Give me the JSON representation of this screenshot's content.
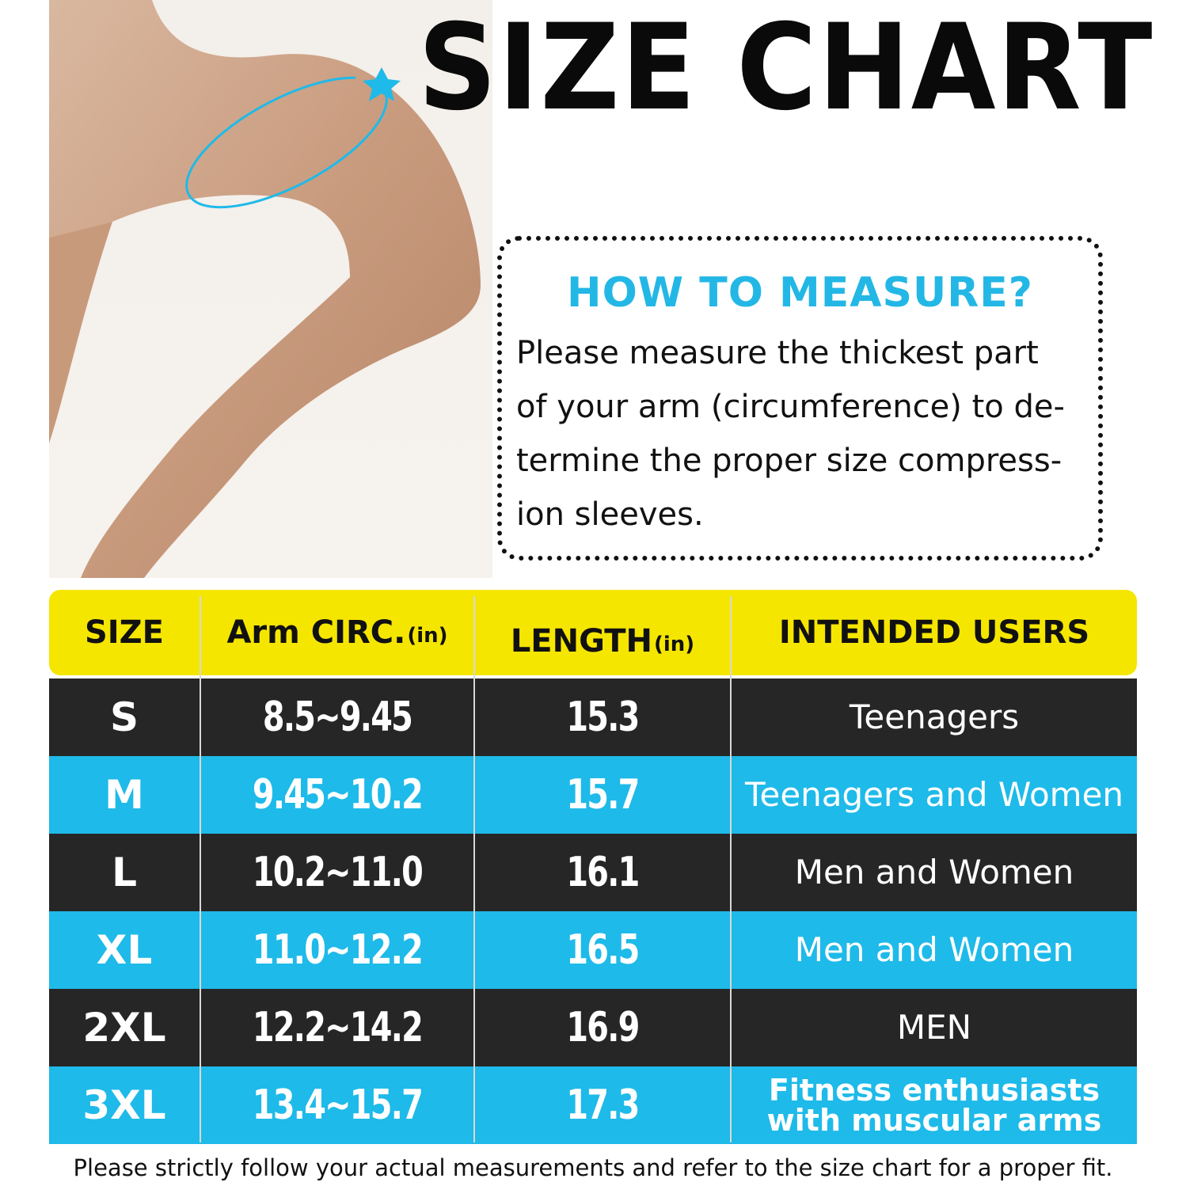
{
  "title": "SIZE CHART",
  "measure": {
    "heading": "HOW TO MEASURE?",
    "lines": [
      "Please measure the thickest part",
      "of your arm (circumference) to de-",
      "termine the proper size compress-",
      "ion sleeves."
    ]
  },
  "table": {
    "headers": {
      "size": "SIZE",
      "arm": "Arm CIRC.",
      "arm_unit": "(in)",
      "length": "LENGTH",
      "length_unit": "(in)",
      "users": "INTENDED USERS"
    },
    "rows": [
      {
        "size": "S",
        "arm": "8.5~9.45",
        "length": "15.3",
        "users": "Teenagers"
      },
      {
        "size": "M",
        "arm": "9.45~10.2",
        "length": "15.7",
        "users": "Teenagers and Women"
      },
      {
        "size": "L",
        "arm": "10.2~11.0",
        "length": "16.1",
        "users": "Men and Women"
      },
      {
        "size": "XL",
        "arm": "11.0~12.2",
        "length": "16.5",
        "users": "Men and Women"
      },
      {
        "size": "2XL",
        "arm": "12.2~14.2",
        "length": "16.9",
        "users": "MEN"
      },
      {
        "size": "3XL",
        "arm": "13.4~15.7",
        "length": "17.3",
        "users": "Fitness enthusiasts",
        "users_line2": "with muscular arms"
      }
    ]
  },
  "footer": "Please strictly follow your actual measurements and refer to the size chart for a proper fit.",
  "colors": {
    "header_band": "#f5e600",
    "dark_row": "#262626",
    "blue_row": "#1ebae9",
    "accent": "#23b7e5"
  }
}
